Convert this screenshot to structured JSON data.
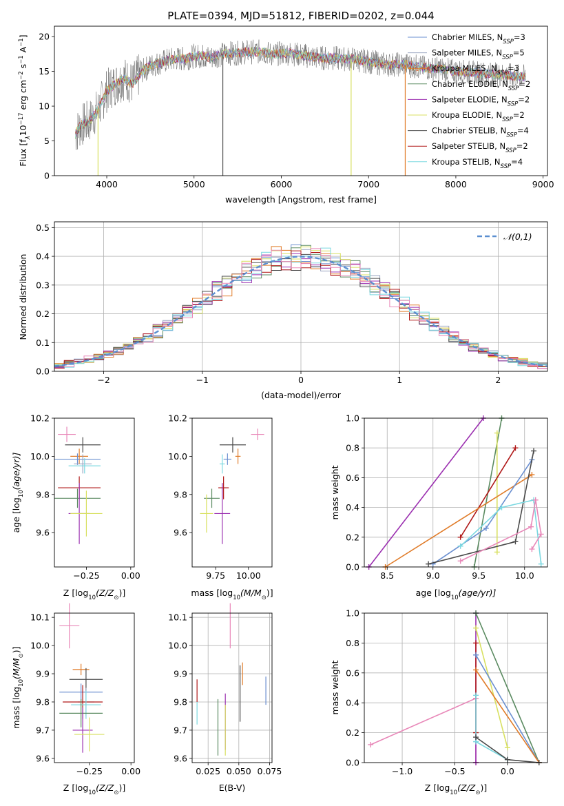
{
  "colors": {
    "chabrier_miles": "#6a8fd0",
    "salpeter_miles": "#9aa4c0",
    "kroupa_miles": "#e07b28",
    "chabrier_elodie": "#5a8a60",
    "salpeter_elodie": "#9b2fb0",
    "kroupa_elodie": "#d8e060",
    "chabrier_stelib": "#4a4a4a",
    "salpeter_stelib": "#b01818",
    "kroupa_stelib": "#7ad8e0",
    "pink": "#e887b8",
    "normal": "#5b8fd0"
  },
  "chart_data": [
    {
      "id": "spectrum",
      "type": "line",
      "title": "PLATE=0394, MJD=51812, FIBERID=0202, z=0.044",
      "xlabel": "wavelength [Angstrom, rest frame]",
      "ylabel_main": "Flux [f",
      "ylabel_sub": "λ",
      "ylabel_mid": "10",
      "ylabel_sup1": "−17",
      "ylabel_rest": " erg cm",
      "ylabel_sup2": "−2",
      "ylabel_s": " s",
      "ylabel_sup3": "−1",
      "ylabel_end": " A",
      "ylabel_sup4": "−1",
      "ylabel_close": "]",
      "xlim": [
        3400,
        9050
      ],
      "ylim": [
        0,
        21.5
      ],
      "xticks": [
        4000,
        5000,
        6000,
        7000,
        8000,
        9000
      ],
      "yticks": [
        0,
        5,
        10,
        15,
        20
      ],
      "grid": false,
      "legend_placement": "right",
      "legend": [
        {
          "pre": "Chabrier MILES, N",
          "sub": "SSP",
          "post": "=3",
          "color_key": "chabrier_miles"
        },
        {
          "pre": "Salpeter MILES, N",
          "sub": "SSP",
          "post": "=5",
          "color_key": "salpeter_miles"
        },
        {
          "pre": "Kroupa MILES, N",
          "sub": "SSP",
          "post": "=3",
          "color_key": "kroupa_miles"
        },
        {
          "pre": "Chabrier ELODIE, N",
          "sub": "SSP",
          "post": "=2",
          "color_key": "chabrier_elodie"
        },
        {
          "pre": "Salpeter ELODIE, N",
          "sub": "SSP",
          "post": "=2",
          "color_key": "salpeter_elodie"
        },
        {
          "pre": "Kroupa ELODIE, N",
          "sub": "SSP",
          "post": "=2",
          "color_key": "kroupa_elodie"
        },
        {
          "pre": "Chabrier STELIB, N",
          "sub": "SSP",
          "post": "=4",
          "color_key": "chabrier_stelib"
        },
        {
          "pre": "Salpeter STELIB, N",
          "sub": "SSP",
          "post": "=2",
          "color_key": "salpeter_stelib"
        },
        {
          "pre": "Kroupa STELIB, N",
          "sub": "SSP",
          "post": "=4",
          "color_key": "kroupa_stelib"
        }
      ],
      "continuum": [
        [
          3640,
          6.0
        ],
        [
          3700,
          7.2
        ],
        [
          3800,
          7.8
        ],
        [
          3900,
          9.5
        ],
        [
          4000,
          12.2
        ],
        [
          4100,
          13.2
        ],
        [
          4200,
          14.0
        ],
        [
          4300,
          13.2
        ],
        [
          4400,
          15.0
        ],
        [
          4500,
          15.8
        ],
        [
          4600,
          16.2
        ],
        [
          4700,
          16.6
        ],
        [
          4800,
          16.8
        ],
        [
          4900,
          16.8
        ],
        [
          5000,
          17.2
        ],
        [
          5100,
          17.2
        ],
        [
          5200,
          17.0
        ],
        [
          5300,
          17.4
        ],
        [
          5400,
          17.6
        ],
        [
          5500,
          17.6
        ],
        [
          5600,
          17.8
        ],
        [
          5700,
          17.8
        ],
        [
          5800,
          17.8
        ],
        [
          5900,
          17.4
        ],
        [
          6000,
          17.6
        ],
        [
          6100,
          17.6
        ],
        [
          6200,
          17.4
        ],
        [
          6300,
          17.2
        ],
        [
          6400,
          17.0
        ],
        [
          6500,
          16.9
        ],
        [
          6600,
          16.9
        ],
        [
          6700,
          16.8
        ],
        [
          6800,
          16.8
        ],
        [
          6900,
          16.6
        ],
        [
          7000,
          16.4
        ],
        [
          7100,
          16.2
        ],
        [
          7200,
          16.0
        ],
        [
          7300,
          16.0
        ],
        [
          7400,
          16.0
        ],
        [
          7500,
          15.8
        ],
        [
          7600,
          15.6
        ],
        [
          7700,
          15.4
        ],
        [
          7800,
          15.4
        ],
        [
          7900,
          15.2
        ],
        [
          8000,
          15.0
        ],
        [
          8200,
          14.8
        ],
        [
          8400,
          14.6
        ],
        [
          8600,
          14.4
        ],
        [
          8800,
          14.2
        ]
      ],
      "dropouts": [
        {
          "x": 5330,
          "color_key": "chabrier_stelib"
        },
        {
          "x": 3900,
          "color_key": "kroupa_elodie"
        },
        {
          "x": 6800,
          "color_key": "kroupa_elodie"
        },
        {
          "x": 7420,
          "color_key": "kroupa_miles"
        }
      ]
    },
    {
      "id": "residuals",
      "type": "histogram",
      "xlabel": "(data-model)/error",
      "ylabel": "Normed distribution",
      "xlim": [
        -2.5,
        2.5
      ],
      "ylim": [
        0,
        0.52
      ],
      "xticks": [
        -2,
        -1,
        0,
        1,
        2
      ],
      "yticks": [
        0.0,
        0.1,
        0.2,
        0.3,
        0.4,
        0.5
      ],
      "grid": true,
      "bin_width": 0.1,
      "legend_label": "𝒩(0,1)",
      "legend_placement": "top-right",
      "series_color_keys": [
        "chabrier_miles",
        "salpeter_miles",
        "kroupa_miles",
        "chabrier_elodie",
        "salpeter_elodie",
        "kroupa_elodie",
        "chabrier_stelib",
        "salpeter_stelib",
        "kroupa_stelib",
        "pink"
      ]
    },
    {
      "id": "age_vs_Z",
      "type": "scatter",
      "xlabel_main": "Z [log",
      "xlabel_sub": "10",
      "xlabel_rest": "(Z/Z",
      "xlabel_sub2": "⊙",
      "xlabel_close": ")]",
      "ylabel_main": "age  [log",
      "ylabel_sub": "10",
      "ylabel_rest": "(age/yr)]",
      "xlim": [
        -0.43,
        0.02
      ],
      "ylim": [
        9.42,
        10.2
      ],
      "xticks": [
        -0.25,
        0.0
      ],
      "xticklabels": [
        "−0.25",
        "0.00"
      ],
      "yticks": [
        9.6,
        9.8,
        10.0,
        10.2
      ],
      "points": [
        {
          "x": -0.36,
          "y": 10.115,
          "xe": 0.05,
          "ye": 0.04,
          "c": "pink"
        },
        {
          "x": -0.27,
          "y": 10.06,
          "xe": 0.1,
          "ye": 0.04,
          "c": "chabrier_stelib"
        },
        {
          "x": -0.29,
          "y": 10.0,
          "xe": 0.05,
          "ye": 0.04,
          "c": "kroupa_miles"
        },
        {
          "x": -0.3,
          "y": 9.985,
          "xe": 0.13,
          "ye": 0.03,
          "c": "chabrier_miles"
        },
        {
          "x": -0.27,
          "y": 9.96,
          "xe": 0.05,
          "ye": 0.05,
          "c": "salpeter_miles"
        },
        {
          "x": -0.26,
          "y": 9.95,
          "xe": 0.09,
          "ye": 0.04,
          "c": "kroupa_stelib"
        },
        {
          "x": -0.29,
          "y": 9.835,
          "xe": 0.12,
          "ye": 0.06,
          "c": "salpeter_stelib"
        },
        {
          "x": -0.3,
          "y": 9.78,
          "xe": 0.13,
          "ye": 0.05,
          "c": "chabrier_elodie"
        },
        {
          "x": -0.29,
          "y": 9.7,
          "xe": 0.06,
          "ye": 0.16,
          "c": "salpeter_elodie"
        },
        {
          "x": -0.25,
          "y": 9.7,
          "xe": 0.09,
          "ye": 0.12,
          "c": "kroupa_elodie"
        }
      ]
    },
    {
      "id": "age_vs_mass",
      "type": "scatter",
      "xlabel_main": "mass [log",
      "xlabel_sub": "10",
      "xlabel_rest": "(M/M",
      "xlabel_sub2": "⊙",
      "xlabel_close": ")]",
      "xlim": [
        9.57,
        10.18
      ],
      "ylim": [
        9.42,
        10.2
      ],
      "xticks": [
        9.75,
        10.0
      ],
      "xticklabels": [
        "9.75",
        "10.00"
      ],
      "yticks": [
        9.6,
        9.8,
        10.0,
        10.2
      ],
      "points": [
        {
          "x": 10.07,
          "y": 10.115,
          "xe": 0.05,
          "ye": 0.03,
          "c": "pink"
        },
        {
          "x": 9.88,
          "y": 10.06,
          "xe": 0.1,
          "ye": 0.04,
          "c": "chabrier_stelib"
        },
        {
          "x": 9.92,
          "y": 10.0,
          "xe": 0.02,
          "ye": 0.04,
          "c": "kroupa_miles"
        },
        {
          "x": 9.84,
          "y": 9.985,
          "xe": 0.03,
          "ye": 0.03,
          "c": "chabrier_miles"
        },
        {
          "x": 9.8,
          "y": 9.96,
          "xe": 0.02,
          "ye": 0.05,
          "c": "kroupa_stelib"
        },
        {
          "x": 9.81,
          "y": 9.835,
          "xe": 0.04,
          "ye": 0.06,
          "c": "salpeter_stelib"
        },
        {
          "x": 9.72,
          "y": 9.78,
          "xe": 0.06,
          "ye": 0.05,
          "c": "chabrier_elodie"
        },
        {
          "x": 9.8,
          "y": 9.7,
          "xe": 0.06,
          "ye": 0.16,
          "c": "salpeter_elodie"
        },
        {
          "x": 9.68,
          "y": 9.7,
          "xe": 0.05,
          "ye": 0.1,
          "c": "kroupa_elodie"
        }
      ]
    },
    {
      "id": "massweight_vs_age",
      "type": "line",
      "xlabel_main": "age  [log",
      "xlabel_sub": "10",
      "xlabel_rest": "(age/yr)]",
      "ylabel": "mass weight",
      "xlim": [
        8.25,
        10.25
      ],
      "ylim": [
        0,
        1.0
      ],
      "xticks": [
        8.5,
        9.0,
        9.5,
        10.0
      ],
      "yticks": [
        0.0,
        0.2,
        0.4,
        0.6,
        0.8,
        1.0
      ],
      "grid": true,
      "series": [
        {
          "c": "salpeter_elodie",
          "pts": [
            [
              8.3,
              0.0
            ],
            [
              9.55,
              1.0
            ]
          ]
        },
        {
          "c": "chabrier_elodie",
          "pts": [
            [
              9.45,
              0.0
            ],
            [
              9.75,
              1.0
            ]
          ]
        },
        {
          "c": "kroupa_elodie",
          "pts": [
            [
              9.7,
              0.1
            ],
            [
              9.7,
              0.9
            ]
          ]
        },
        {
          "c": "salpeter_stelib",
          "pts": [
            [
              9.3,
              0.2
            ],
            [
              9.9,
              0.8
            ]
          ]
        },
        {
          "c": "kroupa_miles",
          "pts": [
            [
              8.48,
              0.0
            ],
            [
              10.08,
              0.62
            ]
          ]
        },
        {
          "c": "chabrier_miles",
          "pts": [
            [
              9.0,
              0.02
            ],
            [
              9.58,
              0.26
            ],
            [
              10.08,
              0.72
            ]
          ]
        },
        {
          "c": "chabrier_stelib",
          "pts": [
            [
              8.95,
              0.02
            ],
            [
              9.9,
              0.17
            ],
            [
              10.1,
              0.78
            ]
          ]
        },
        {
          "c": "kroupa_stelib",
          "pts": [
            [
              9.3,
              0.14
            ],
            [
              9.75,
              0.4
            ],
            [
              10.1,
              0.45
            ],
            [
              10.18,
              0.02
            ]
          ]
        },
        {
          "c": "pink",
          "pts": [
            [
              9.3,
              0.04
            ],
            [
              10.07,
              0.27
            ],
            [
              10.12,
              0.45
            ],
            [
              10.18,
              0.22
            ],
            [
              10.08,
              0.12
            ]
          ]
        }
      ]
    },
    {
      "id": "mass_vs_Z",
      "type": "scatter",
      "xlabel_main": "Z [log",
      "xlabel_sub": "10",
      "xlabel_rest": "(Z/Z",
      "xlabel_sub2": "⊙",
      "xlabel_close": ")]",
      "ylabel_main": "mass [log",
      "ylabel_sub": "10",
      "ylabel_rest": "(M/M",
      "ylabel_sub2": "⊙",
      "ylabel_close": ")]",
      "xlim": [
        -0.46,
        0.02
      ],
      "ylim": [
        9.585,
        10.115
      ],
      "xticks": [
        -0.25,
        0.0
      ],
      "xticklabels": [
        "−0.25",
        "0.00"
      ],
      "yticks": [
        9.6,
        9.7,
        9.8,
        9.9,
        10.0,
        10.1
      ],
      "points": [
        {
          "x": -0.37,
          "y": 10.07,
          "xe": 0.06,
          "ye": 0.08,
          "c": "pink"
        },
        {
          "x": -0.3,
          "y": 9.915,
          "xe": 0.05,
          "ye": 0.02,
          "c": "kroupa_miles"
        },
        {
          "x": -0.27,
          "y": 9.88,
          "xe": 0.1,
          "ye": 0.04,
          "c": "chabrier_stelib"
        },
        {
          "x": -0.3,
          "y": 9.835,
          "xe": 0.13,
          "ye": 0.03,
          "c": "chabrier_miles"
        },
        {
          "x": -0.27,
          "y": 9.8,
          "xe": 0.05,
          "ye": 0.05,
          "c": "salpeter_miles"
        },
        {
          "x": -0.29,
          "y": 9.8,
          "xe": 0.12,
          "ye": 0.06,
          "c": "salpeter_stelib"
        },
        {
          "x": -0.27,
          "y": 9.79,
          "xe": 0.09,
          "ye": 0.05,
          "c": "kroupa_stelib"
        },
        {
          "x": -0.3,
          "y": 9.76,
          "xe": 0.13,
          "ye": 0.05,
          "c": "chabrier_elodie"
        },
        {
          "x": -0.29,
          "y": 9.7,
          "xe": 0.06,
          "ye": 0.08,
          "c": "salpeter_elodie"
        },
        {
          "x": -0.25,
          "y": 9.685,
          "xe": 0.09,
          "ye": 0.06,
          "c": "kroupa_elodie"
        }
      ]
    },
    {
      "id": "mass_vs_ebv",
      "type": "scatter",
      "xlabel": "E(B-V)",
      "xlim": [
        0.012,
        0.077
      ],
      "ylim": [
        9.585,
        10.115
      ],
      "xticks": [
        0.025,
        0.05,
        0.075
      ],
      "xticklabels": [
        "0.025",
        "0.050",
        "0.075"
      ],
      "yticks": [
        9.6,
        9.7,
        9.8,
        9.9,
        10.0,
        10.1
      ],
      "grid": true,
      "points": [
        {
          "x": 0.043,
          "y": 10.07,
          "xe": 0.0,
          "ye": 0.08,
          "c": "pink"
        },
        {
          "x": 0.053,
          "y": 9.9,
          "xe": 0.0,
          "ye": 0.04,
          "c": "kroupa_miles"
        },
        {
          "x": 0.051,
          "y": 9.83,
          "xe": 0.0,
          "ye": 0.1,
          "c": "chabrier_stelib"
        },
        {
          "x": 0.072,
          "y": 9.84,
          "xe": 0.0,
          "ye": 0.05,
          "c": "chabrier_miles"
        },
        {
          "x": 0.016,
          "y": 9.84,
          "xe": 0.0,
          "ye": 0.04,
          "c": "salpeter_stelib"
        },
        {
          "x": 0.016,
          "y": 9.76,
          "xe": 0.0,
          "ye": 0.04,
          "c": "kroupa_stelib"
        },
        {
          "x": 0.033,
          "y": 9.71,
          "xe": 0.0,
          "ye": 0.1,
          "c": "chabrier_elodie"
        },
        {
          "x": 0.039,
          "y": 9.73,
          "xe": 0.0,
          "ye": 0.1,
          "c": "salpeter_elodie"
        },
        {
          "x": 0.039,
          "y": 9.7,
          "xe": 0.0,
          "ye": 0.09,
          "c": "kroupa_elodie"
        }
      ]
    },
    {
      "id": "massweight_vs_Z",
      "type": "line",
      "xlabel_main": "Z [log",
      "xlabel_sub": "10",
      "xlabel_rest": "(Z/Z",
      "xlabel_sub2": "⊙",
      "xlabel_close": ")]",
      "ylabel": "mass weight",
      "xlim": [
        -1.36,
        0.38
      ],
      "ylim": [
        0,
        1.0
      ],
      "xticks": [
        -1.0,
        -0.5,
        0.0
      ],
      "xticklabels": [
        "−1.0",
        "−0.5",
        "0.0"
      ],
      "yticks": [
        0.0,
        0.2,
        0.4,
        0.6,
        0.8,
        1.0
      ],
      "grid": true,
      "series": [
        {
          "c": "pink",
          "pts": [
            [
              -1.3,
              0.12
            ],
            [
              -0.3,
              0.43
            ],
            [
              -0.3,
              0.0
            ]
          ]
        },
        {
          "c": "salpeter_elodie",
          "pts": [
            [
              -0.3,
              0.0
            ],
            [
              -0.3,
              1.0
            ]
          ]
        },
        {
          "c": "salpeter_stelib",
          "pts": [
            [
              -0.3,
              0.2
            ],
            [
              -0.3,
              0.8
            ]
          ]
        },
        {
          "c": "chabrier_elodie",
          "pts": [
            [
              -0.3,
              1.0
            ],
            [
              0.3,
              0.0
            ]
          ]
        },
        {
          "c": "kroupa_elodie",
          "pts": [
            [
              -0.3,
              0.9
            ],
            [
              0.0,
              0.1
            ]
          ]
        },
        {
          "c": "chabrier_miles",
          "pts": [
            [
              -0.3,
              0.72
            ],
            [
              0.3,
              0.0
            ]
          ]
        },
        {
          "c": "kroupa_miles",
          "pts": [
            [
              -0.3,
              0.62
            ],
            [
              0.3,
              0.0
            ]
          ]
        },
        {
          "c": "kroupa_stelib",
          "pts": [
            [
              -0.3,
              0.45
            ],
            [
              -0.3,
              0.14
            ],
            [
              0.0,
              0.02
            ]
          ]
        },
        {
          "c": "chabrier_stelib",
          "pts": [
            [
              -0.3,
              0.17
            ],
            [
              0.0,
              0.02
            ],
            [
              0.3,
              0.0
            ]
          ]
        }
      ]
    }
  ]
}
